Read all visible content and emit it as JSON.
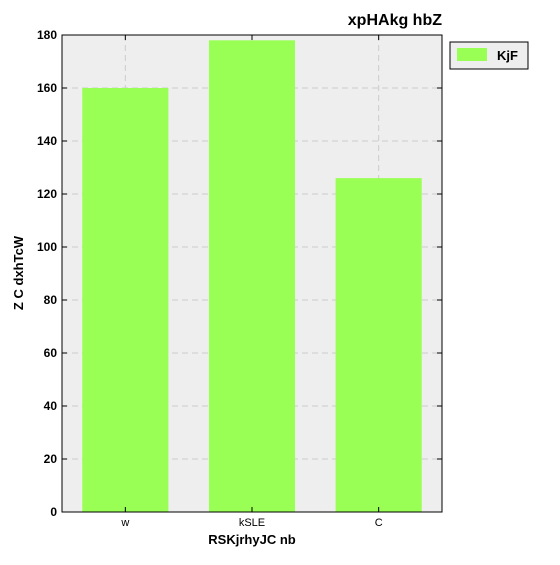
{
  "chart_data": {
    "type": "bar",
    "title": "xpHAkg hbZ",
    "xlabel": "RSKjrhyJC nb",
    "ylabel": "Z C dxhTcW",
    "categories": [
      "w",
      "kSLE",
      "C"
    ],
    "series": [
      {
        "name": "KjF",
        "values": [
          160,
          178,
          126
        ]
      }
    ],
    "ylim": [
      0,
      180
    ],
    "yticks": [
      0,
      20,
      40,
      60,
      80,
      100,
      120,
      140,
      160,
      180
    ],
    "grid": true,
    "legend_position": "outside-right-top",
    "colors": {
      "bar": "#99ff55",
      "plot_background": "#eeeeee",
      "grid": "#cccccc"
    }
  }
}
